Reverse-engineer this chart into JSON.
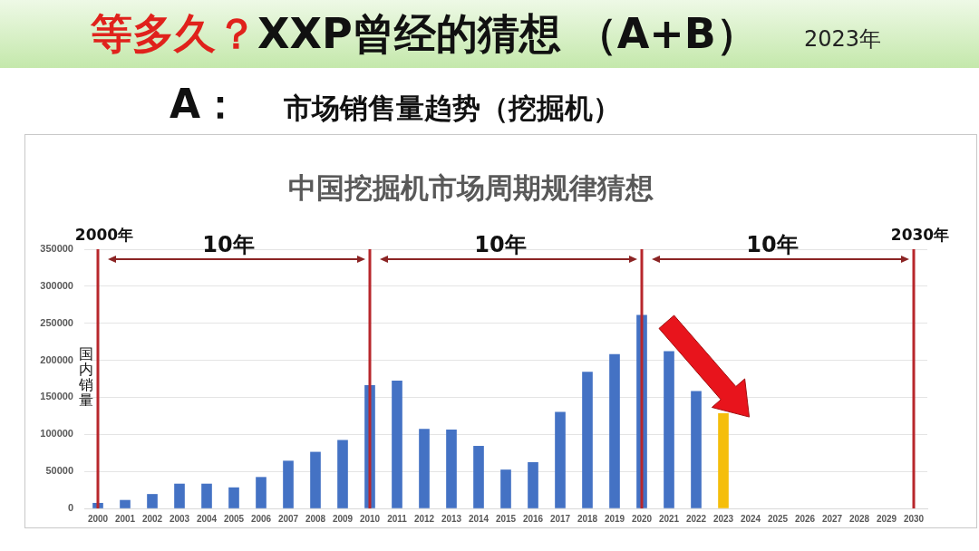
{
  "chart_data": {
    "type": "bar",
    "title": "等多久？XXP曾经的猜想 （A+B）",
    "subtitle": "市场销售量趋势（挖掘机）",
    "ylabel": "国内销量",
    "annotations": [
      "2023年",
      "A：",
      "中国挖掘机市场周期规律猜想",
      "10年",
      "10年",
      "10年"
    ],
    "categories": [
      "2000",
      "2001",
      "2002",
      "2003",
      "2004",
      "2005",
      "2006",
      "2007",
      "2008",
      "2009",
      "2010",
      "2011",
      "2012",
      "2013",
      "2014",
      "2015",
      "2016",
      "2017",
      "2018",
      "2019",
      "2020",
      "2021",
      "2022",
      "2023",
      "2024",
      "2025",
      "2026",
      "2027",
      "2028",
      "2029",
      "2030"
    ],
    "values": [
      7000,
      11000,
      19000,
      33000,
      33000,
      28000,
      42000,
      64000,
      76000,
      92000,
      166000,
      172000,
      107000,
      106000,
      84000,
      52000,
      62000,
      130000,
      184000,
      208000,
      261000,
      212000,
      158000,
      128000,
      null,
      null,
      null,
      null,
      null,
      null,
      null
    ],
    "colors": [
      "#4472c4",
      "#4472c4",
      "#4472c4",
      "#4472c4",
      "#4472c4",
      "#4472c4",
      "#4472c4",
      "#4472c4",
      "#4472c4",
      "#4472c4",
      "#4472c4",
      "#4472c4",
      "#4472c4",
      "#4472c4",
      "#4472c4",
      "#4472c4",
      "#4472c4",
      "#4472c4",
      "#4472c4",
      "#4472c4",
      "#4472c4",
      "#4472c4",
      "#4472c4",
      "#f5be0b",
      null,
      null,
      null,
      null,
      null,
      null,
      null
    ],
    "ylim": [
      0,
      350000
    ],
    "yticks": [
      0,
      50000,
      100000,
      150000,
      200000,
      250000,
      300000,
      350000
    ],
    "grid": "y",
    "ref_lines": [
      {
        "axis": "x",
        "value": "2000",
        "label": "2000年",
        "color": "#b8272c"
      },
      {
        "axis": "x",
        "value": "2010",
        "color": "#b8272c"
      },
      {
        "axis": "x",
        "value": "2020",
        "color": "#b8272c"
      },
      {
        "axis": "x",
        "value": "2030",
        "label": "2030年",
        "color": "#b8272c"
      }
    ]
  }
}
